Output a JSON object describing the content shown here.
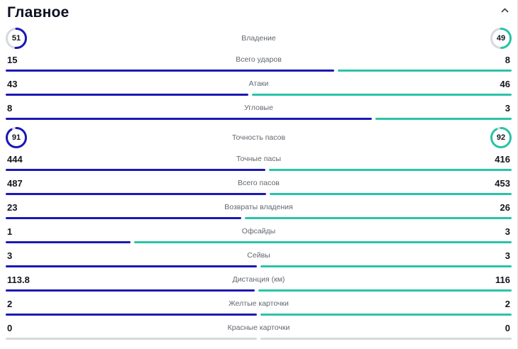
{
  "section": {
    "title": "Главное",
    "collapse_icon": "chevron-up"
  },
  "colors": {
    "home": "#1c18b4",
    "away": "#2bc3a8",
    "track": "#d6d9de",
    "neutral": "#d6d9de"
  },
  "rows": [
    {
      "type": "circle",
      "label": "Владение",
      "home": "51",
      "away": "49"
    },
    {
      "type": "bar",
      "label": "Всего ударов",
      "home": "15",
      "away": "8"
    },
    {
      "type": "bar",
      "label": "Атаки",
      "home": "43",
      "away": "46"
    },
    {
      "type": "bar",
      "label": "Угловые",
      "home": "8",
      "away": "3"
    },
    {
      "type": "circle",
      "label": "Точность пасов",
      "home": "91",
      "away": "92"
    },
    {
      "type": "bar",
      "label": "Точные пасы",
      "home": "444",
      "away": "416"
    },
    {
      "type": "bar",
      "label": "Всего пасов",
      "home": "487",
      "away": "453"
    },
    {
      "type": "bar",
      "label": "Возвраты владения",
      "home": "23",
      "away": "26"
    },
    {
      "type": "bar",
      "label": "Офсайды",
      "home": "1",
      "away": "3"
    },
    {
      "type": "bar",
      "label": "Сейвы",
      "home": "3",
      "away": "3"
    },
    {
      "type": "bar",
      "label": "Дистанция (км)",
      "home": "113.8",
      "away": "116"
    },
    {
      "type": "bar",
      "label": "Желтые карточки",
      "home": "2",
      "away": "2"
    },
    {
      "type": "bar",
      "label": "Красные карточки",
      "home": "0",
      "away": "0"
    }
  ]
}
